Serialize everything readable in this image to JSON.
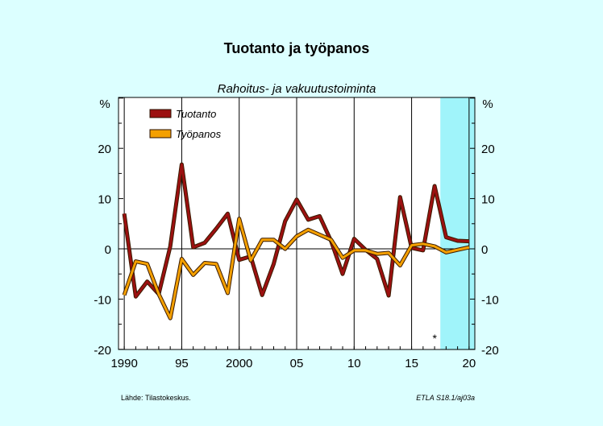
{
  "chart_data": {
    "type": "line",
    "title": "Tuotanto ja työpanos",
    "subtitle": "Rahoitus- ja vakuutustoiminta",
    "unit_left": "%",
    "unit_right": "%",
    "x": [
      1990,
      1991,
      1992,
      1993,
      1994,
      1995,
      1996,
      1997,
      1998,
      1999,
      2000,
      2001,
      2002,
      2003,
      2004,
      2005,
      2006,
      2007,
      2008,
      2009,
      2010,
      2011,
      2012,
      2013,
      2014,
      2015,
      2016,
      2017,
      2018,
      2019,
      2020
    ],
    "xlim": [
      1989.5,
      2020.5
    ],
    "ylim": [
      -20,
      30
    ],
    "x_ticks": [
      {
        "value": 1990,
        "label": "1990"
      },
      {
        "value": 1995,
        "label": "95"
      },
      {
        "value": 2000,
        "label": "2000"
      },
      {
        "value": 2005,
        "label": "05"
      },
      {
        "value": 2010,
        "label": "10"
      },
      {
        "value": 2015,
        "label": "15"
      },
      {
        "value": 2020,
        "label": "20"
      }
    ],
    "y_ticks": [
      {
        "value": 20,
        "label": "20"
      },
      {
        "value": 10,
        "label": "10"
      },
      {
        "value": 0,
        "label": "0"
      },
      {
        "value": -10,
        "label": "-10"
      },
      {
        "value": -20,
        "label": "-20"
      }
    ],
    "forecast_from": 2017.5,
    "forecast_marker": "*",
    "forecast_color": "#a0f4fa",
    "grid": true,
    "legend_placement": "top-left",
    "series": [
      {
        "name": "Tuotanto",
        "color": "#9c1010",
        "values": [
          7.0,
          -9.5,
          -6.5,
          -9.0,
          0.5,
          16.8,
          0.3,
          1.2,
          4.0,
          7.0,
          -2.2,
          -1.5,
          -9.2,
          -3.0,
          5.5,
          9.8,
          5.8,
          6.5,
          1.5,
          -5.0,
          2.0,
          -0.2,
          -2.0,
          -9.3,
          10.3,
          0.2,
          -0.3,
          12.5,
          2.3,
          1.6,
          1.5
        ]
      },
      {
        "name": "Työpanos",
        "color": "#f4a000",
        "values": [
          -9.2,
          -2.5,
          -3.0,
          -9.0,
          -13.8,
          -2.0,
          -5.2,
          -2.8,
          -3.0,
          -8.8,
          6.0,
          -2.3,
          1.8,
          1.8,
          0.0,
          2.5,
          3.8,
          2.8,
          1.8,
          -1.8,
          -0.3,
          -0.3,
          -1.0,
          -0.8,
          -3.3,
          0.7,
          1.0,
          0.5,
          -0.7,
          -0.2,
          0.3
        ]
      }
    ]
  },
  "footer": {
    "source_label": "Lähde:",
    "source": "Tilastokeskus.",
    "code": "ETLA S18.1/aj03a"
  }
}
